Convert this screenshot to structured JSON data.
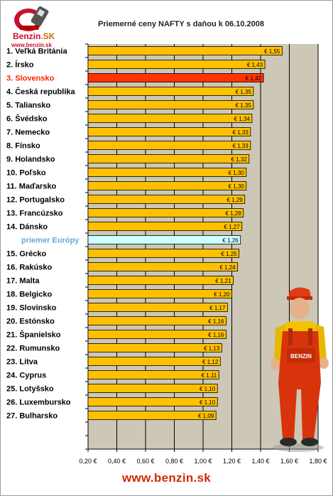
{
  "logo": {
    "brand_word": "Benzin",
    "brand_suffix": ".SK",
    "url": "www.benzin.sk"
  },
  "chart_data": {
    "type": "bar",
    "orientation": "horizontal",
    "title": "Priemerné ceny NAFTY s daňou k 06.10.2008",
    "categories": [
      "1. Veľká Británia",
      "2. Írsko",
      "3. Slovensko",
      "4. Česká republika",
      "5. Taliansko",
      "6. Švédsko",
      "7. Nemecko",
      "8. Fínsko",
      "9. Holandsko",
      "10. Poľsko",
      "11. Maďarsko",
      "12. Portugalsko",
      "13. Francúzsko",
      "14. Dánsko",
      "priemer Európy",
      "15. Grécko",
      "16. Rakúsko",
      "17. Malta",
      "18. Belgicko",
      "19. Slovinsko",
      "20. Estónsko",
      "21. Španielsko",
      "22. Rumunsko",
      "23. Litva",
      "24. Cyprus",
      "25. Lotyšsko",
      "26. Luxembursko",
      "27. Bulharsko"
    ],
    "values": [
      1.55,
      1.43,
      1.42,
      1.35,
      1.35,
      1.34,
      1.33,
      1.33,
      1.32,
      1.3,
      1.3,
      1.29,
      1.28,
      1.27,
      1.26,
      1.25,
      1.24,
      1.21,
      1.2,
      1.17,
      1.16,
      1.16,
      1.13,
      1.12,
      1.11,
      1.1,
      1.1,
      1.09
    ],
    "data_labels": [
      "€ 1,55",
      "€ 1,43",
      "€ 1,42",
      "€ 1,35",
      "€ 1,35",
      "€ 1,34",
      "€ 1,33",
      "€ 1,33",
      "€ 1,32",
      "€ 1,30",
      "€ 1,30",
      "€ 1,29",
      "€ 1,28",
      "€ 1,27",
      "€ 1,26",
      "€ 1,25",
      "€ 1,24",
      "€ 1,21",
      "€ 1,20",
      "€ 1,17",
      "€ 1,16",
      "€ 1,16",
      "€ 1,13",
      "€ 1,12",
      "€ 1,11",
      "€ 1,10",
      "€ 1,10",
      "€ 1,09"
    ],
    "highlight": {
      "3. Slovensko": "slovakia",
      "priemer Európy": "average"
    },
    "xlim": [
      0.2,
      1.8
    ],
    "x_ticks": [
      0.2,
      0.4,
      0.6,
      0.8,
      1.0,
      1.2,
      1.4,
      1.6,
      1.8
    ],
    "x_tick_labels": [
      "0,20 €",
      "0,40 €",
      "0,60 €",
      "0,80 €",
      "1,00 €",
      "1,20 €",
      "1,40 €",
      "1,60 €",
      "1,80 €"
    ],
    "grid": true,
    "colors": {
      "bar": "#ffc000",
      "bar_slovakia": "#ff3300",
      "bar_average": "#ccffff",
      "label_slovakia": "#ff2200",
      "label_average": "#66aadd",
      "plot_background": "#ccc7b6"
    }
  },
  "footer": {
    "url": "www.benzin.sk"
  }
}
